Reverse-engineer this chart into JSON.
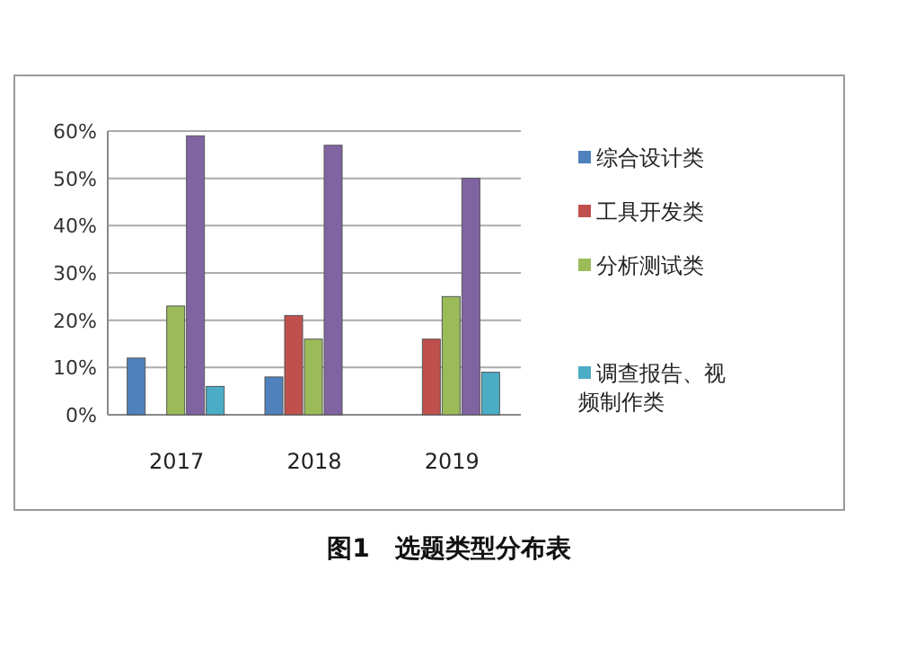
{
  "chart_data": {
    "type": "bar",
    "categories": [
      "2017",
      "2018",
      "2019"
    ],
    "series": [
      {
        "name": "综合设计类",
        "color": "#4f81bd",
        "values": [
          12,
          8,
          0
        ]
      },
      {
        "name": "工具开发类",
        "color": "#c0504d",
        "values": [
          0,
          21,
          16
        ]
      },
      {
        "name": "分析测试类",
        "color": "#9bbb59",
        "values": [
          23,
          16,
          25
        ]
      },
      {
        "color": "#8064a2",
        "values": [
          59,
          57,
          50
        ]
      },
      {
        "name": "调查报告、视频制作类",
        "color": "#4bacc6",
        "values": [
          6,
          0,
          9
        ]
      }
    ],
    "ylim": [
      0,
      60
    ],
    "yticks": [
      {
        "value": 0,
        "label": "0%"
      },
      {
        "value": 10,
        "label": "10%"
      },
      {
        "value": 20,
        "label": "20%"
      },
      {
        "value": 30,
        "label": "30%"
      },
      {
        "value": 40,
        "label": "40%"
      },
      {
        "value": 50,
        "label": "50%"
      },
      {
        "value": 60,
        "label": "60%"
      }
    ],
    "grid": "y",
    "legend": "right",
    "annotations": [
      "图1　选题类型分布表"
    ]
  }
}
